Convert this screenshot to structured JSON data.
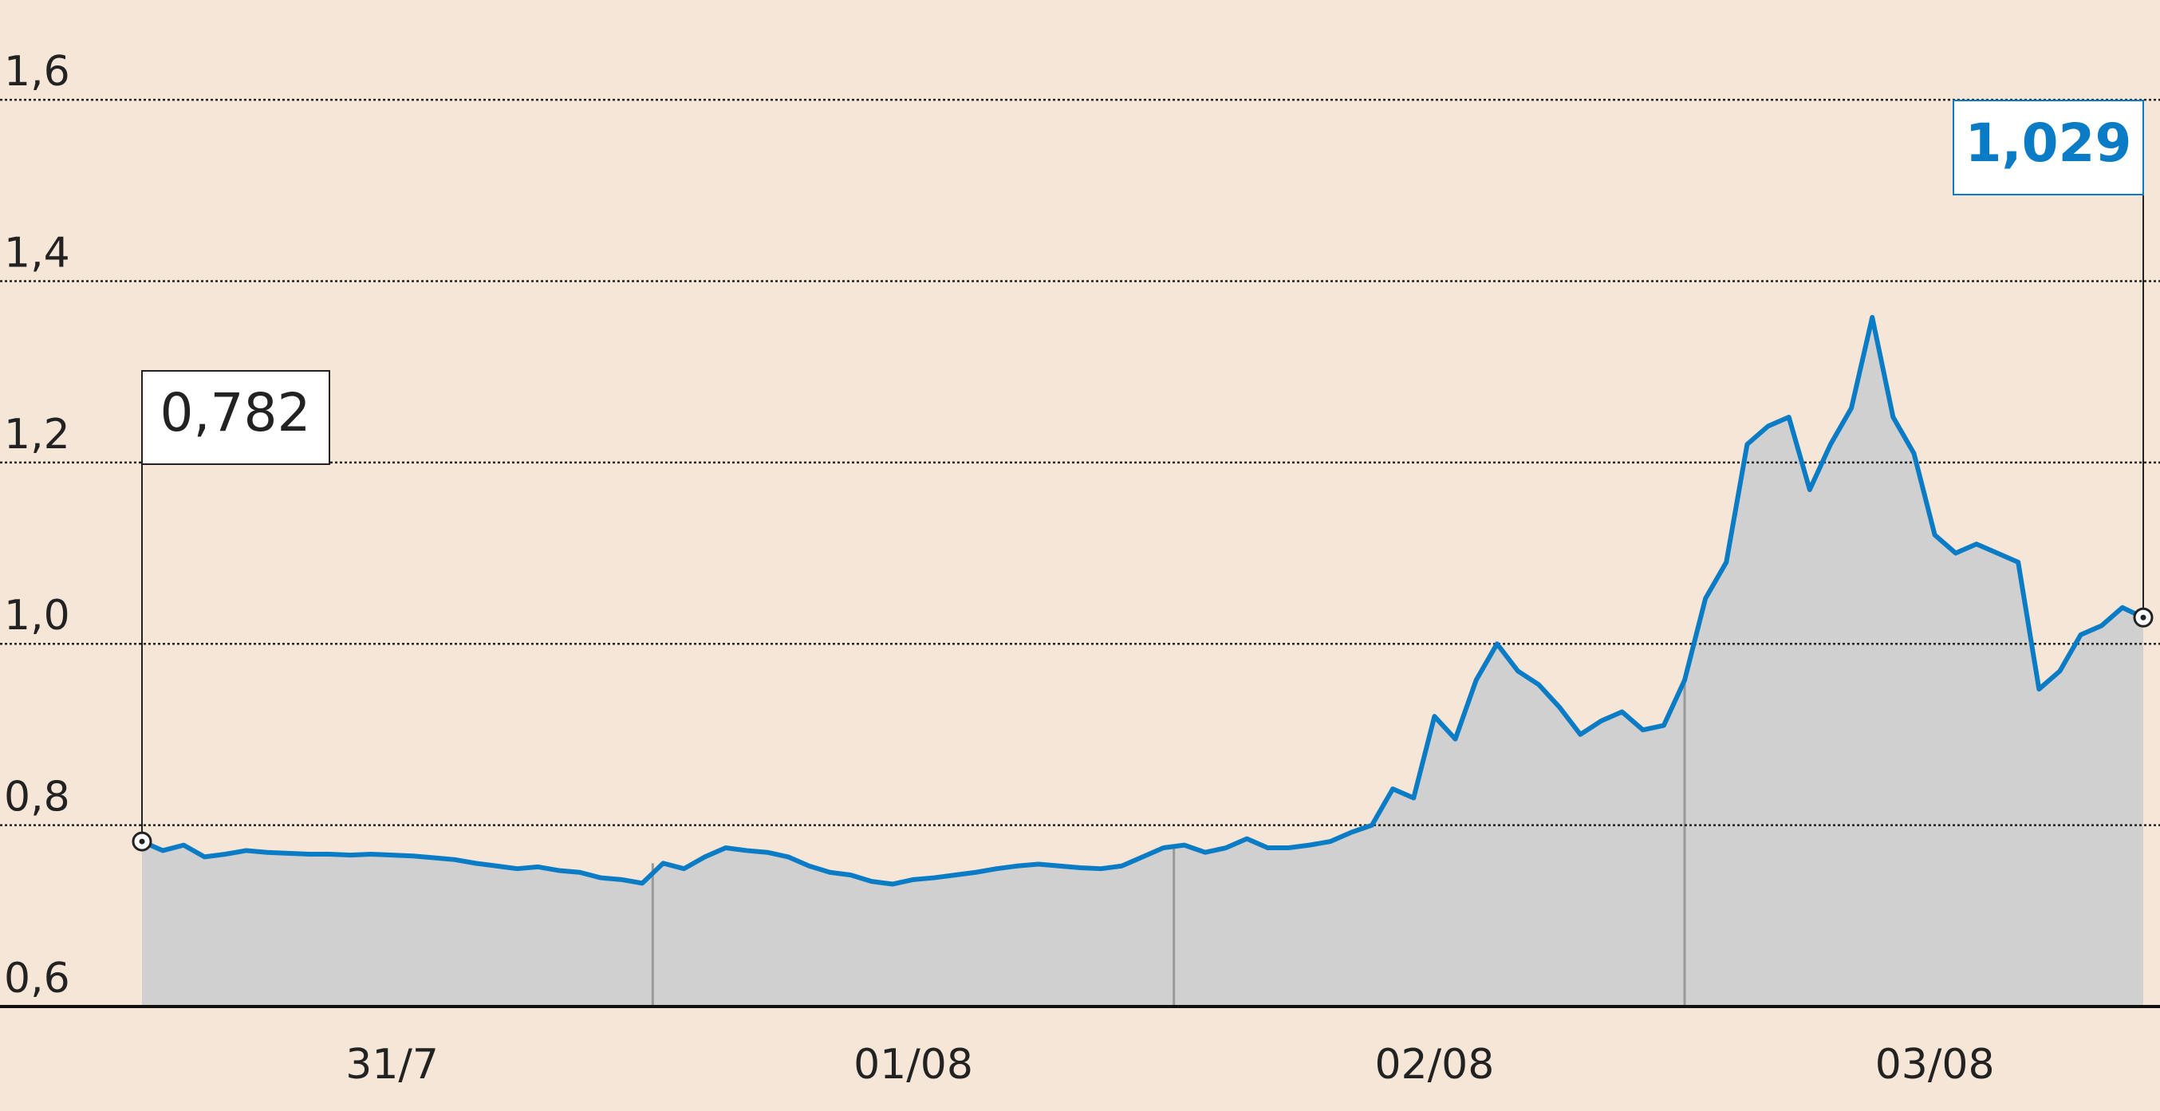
{
  "chart_data": {
    "type": "area",
    "series": [
      {
        "color": "#0a7cc5",
        "fill": "#d0d0d0",
        "values": [
          0.782,
          0.772,
          0.778,
          0.765,
          0.768,
          0.772,
          0.77,
          0.769,
          0.768,
          0.768,
          0.767,
          0.768,
          0.767,
          0.766,
          0.764,
          0.762,
          0.758,
          0.755,
          0.752,
          0.754,
          0.75,
          0.748,
          0.742,
          0.74,
          0.736,
          0.758,
          0.752,
          0.765,
          0.775,
          0.772,
          0.77,
          0.765,
          0.755,
          0.748,
          0.745,
          0.738,
          0.735,
          0.74,
          0.742,
          0.745,
          0.748,
          0.752,
          0.755,
          0.757,
          0.755,
          0.753,
          0.752,
          0.755,
          0.765,
          0.775,
          0.778,
          0.77,
          0.775,
          0.785,
          0.775,
          0.775,
          0.778,
          0.782,
          0.792,
          0.8,
          0.84,
          0.83,
          0.92,
          0.895,
          0.96,
          1.0,
          0.97,
          0.955,
          0.93,
          0.9,
          0.915,
          0.925,
          0.905,
          0.91,
          0.96,
          1.05,
          1.09,
          1.22,
          1.24,
          1.25,
          1.17,
          1.22,
          1.26,
          1.36,
          1.25,
          1.21,
          1.12,
          1.1,
          1.11,
          1.1,
          1.09,
          0.95,
          0.97,
          1.01,
          1.02,
          1.04,
          1.029
        ]
      }
    ],
    "start_label": "0,782",
    "end_label": "1,029",
    "xlim": [
      0,
      96
    ],
    "xticks": [
      {
        "value": 12,
        "label": "31/7"
      },
      {
        "value": 37,
        "label": "01/08"
      },
      {
        "value": 62,
        "label": "02/08"
      },
      {
        "value": 86,
        "label": "03/08"
      }
    ],
    "ylim": [
      0.6,
      1.71
    ],
    "yticks": [
      {
        "value": 0.6,
        "label": "0,6"
      },
      {
        "value": 0.8,
        "label": "0,8"
      },
      {
        "value": 1.0,
        "label": "1,0"
      },
      {
        "value": 1.2,
        "label": "1,2"
      },
      {
        "value": 1.4,
        "label": "1,4"
      },
      {
        "value": 1.6,
        "label": "1,6"
      }
    ],
    "grid": true
  }
}
